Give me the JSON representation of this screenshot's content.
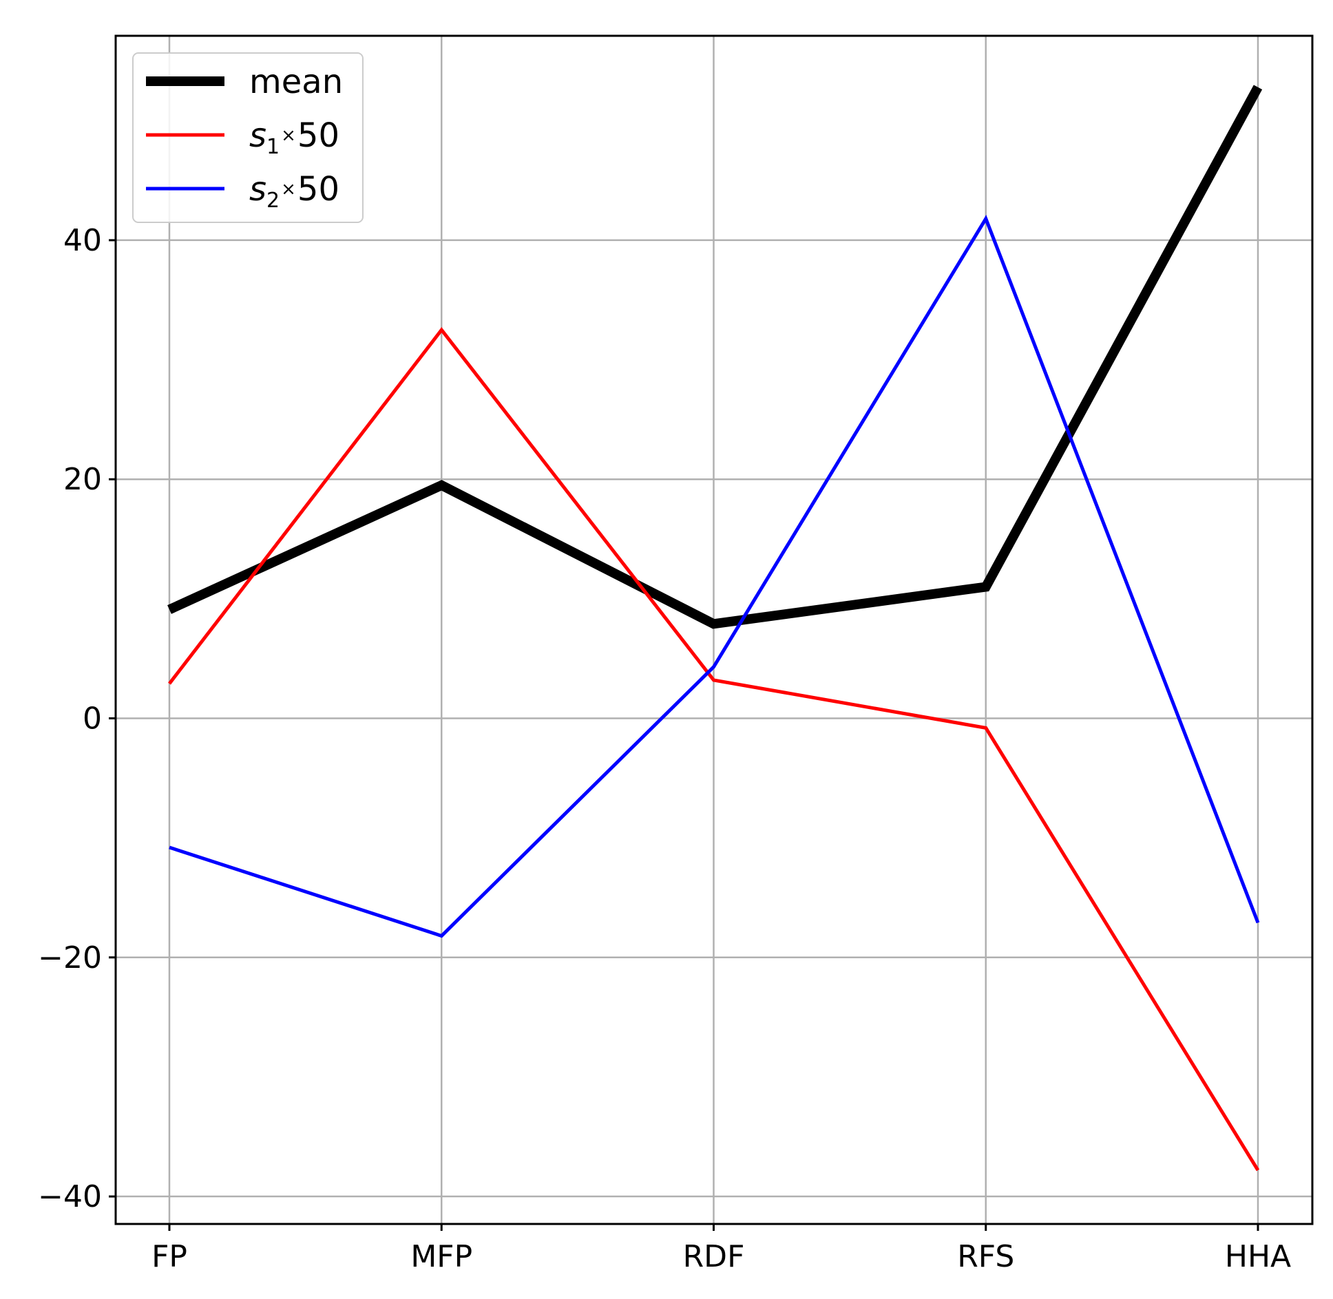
{
  "chart_data": {
    "type": "line",
    "title": "",
    "xlabel": "",
    "ylabel": "",
    "categories": [
      "FP",
      "MFP",
      "RDF",
      "RFS",
      "HHA"
    ],
    "ylim": [
      -42.3,
      57.1
    ],
    "y_ticks": [
      -40,
      -20,
      0,
      20,
      40
    ],
    "y_tick_labels": [
      "−40",
      "−20",
      "0",
      "20",
      "40"
    ],
    "grid": true,
    "legend_position": "top-left",
    "series": [
      {
        "name": "mean",
        "label_main": "mean",
        "label_sub": "",
        "label_tail": "",
        "color": "#000000",
        "style": "thick",
        "values": [
          9.1,
          19.5,
          7.9,
          11.0,
          52.8
        ]
      },
      {
        "name": "s1×50",
        "label_main": "s",
        "label_sub": "1",
        "label_tail": "50",
        "color": "#ff0000",
        "style": "thin",
        "values": [
          2.9,
          32.5,
          3.2,
          -0.8,
          -37.8
        ]
      },
      {
        "name": "s2×50",
        "label_main": "s",
        "label_sub": "2",
        "label_tail": "50",
        "color": "#0000ff",
        "style": "thin",
        "values": [
          -10.8,
          -18.2,
          4.3,
          41.8,
          -17.1
        ]
      }
    ]
  }
}
